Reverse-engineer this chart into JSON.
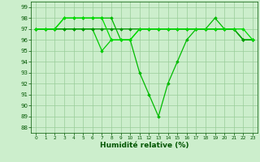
{
  "series": [
    {
      "x": [
        0,
        1,
        2,
        3,
        4,
        5,
        6,
        7,
        8,
        9,
        10,
        11,
        12,
        13,
        14,
        15,
        16,
        17,
        18,
        19,
        20,
        21,
        22,
        23
      ],
      "y": [
        97,
        97,
        97,
        98,
        98,
        98,
        98,
        98,
        98,
        96,
        96,
        93,
        91,
        89,
        92,
        94,
        96,
        97,
        97,
        98,
        97,
        97,
        96,
        96
      ],
      "color": "#00bb00",
      "linewidth": 0.9,
      "marker": "D",
      "markersize": 1.8
    },
    {
      "x": [
        0,
        1,
        2,
        3,
        4,
        5,
        6,
        7,
        8,
        9,
        10,
        11,
        12,
        13,
        14,
        15,
        16,
        17,
        18,
        19,
        20,
        21,
        22,
        23
      ],
      "y": [
        97,
        97,
        97,
        97,
        97,
        97,
        97,
        95,
        96,
        96,
        96,
        97,
        97,
        97,
        97,
        97,
        97,
        97,
        97,
        97,
        97,
        97,
        96,
        96
      ],
      "color": "#00cc00",
      "linewidth": 0.9,
      "marker": "D",
      "markersize": 1.8
    },
    {
      "x": [
        0,
        1,
        2,
        3,
        4,
        5,
        6,
        7,
        8,
        9,
        10,
        11,
        12,
        13,
        14,
        15,
        16,
        17,
        18,
        19,
        20,
        21,
        22,
        23
      ],
      "y": [
        97,
        97,
        97,
        97,
        97,
        97,
        97,
        97,
        97,
        97,
        97,
        97,
        97,
        97,
        97,
        97,
        97,
        97,
        97,
        97,
        97,
        97,
        96,
        96
      ],
      "color": "#009900",
      "linewidth": 0.9,
      "marker": "D",
      "markersize": 1.8
    },
    {
      "x": [
        0,
        1,
        2,
        3,
        4,
        5,
        6,
        7,
        8,
        9,
        10,
        11,
        12,
        13,
        14,
        15,
        16,
        17,
        18,
        19,
        20,
        21,
        22,
        23
      ],
      "y": [
        97,
        97,
        97,
        98,
        98,
        98,
        98,
        98,
        96,
        96,
        96,
        97,
        97,
        97,
        97,
        97,
        97,
        97,
        97,
        97,
        97,
        97,
        97,
        96
      ],
      "color": "#00dd00",
      "linewidth": 0.9,
      "marker": "D",
      "markersize": 1.8
    }
  ],
  "xlim": [
    -0.5,
    23.5
  ],
  "ylim": [
    87.5,
    99.5
  ],
  "yticks": [
    88,
    89,
    90,
    91,
    92,
    93,
    94,
    95,
    96,
    97,
    98,
    99
  ],
  "xticks": [
    0,
    1,
    2,
    3,
    4,
    5,
    6,
    7,
    8,
    9,
    10,
    11,
    12,
    13,
    14,
    15,
    16,
    17,
    18,
    19,
    20,
    21,
    22,
    23
  ],
  "xlabel": "Humidité relative (%)",
  "xlabel_color": "#005500",
  "grid_color": "#99cc99",
  "bg_color": "#cceecc",
  "tick_color": "#005500",
  "ytick_fontsize": 5.0,
  "xtick_fontsize": 4.2,
  "xlabel_fontsize": 6.5
}
